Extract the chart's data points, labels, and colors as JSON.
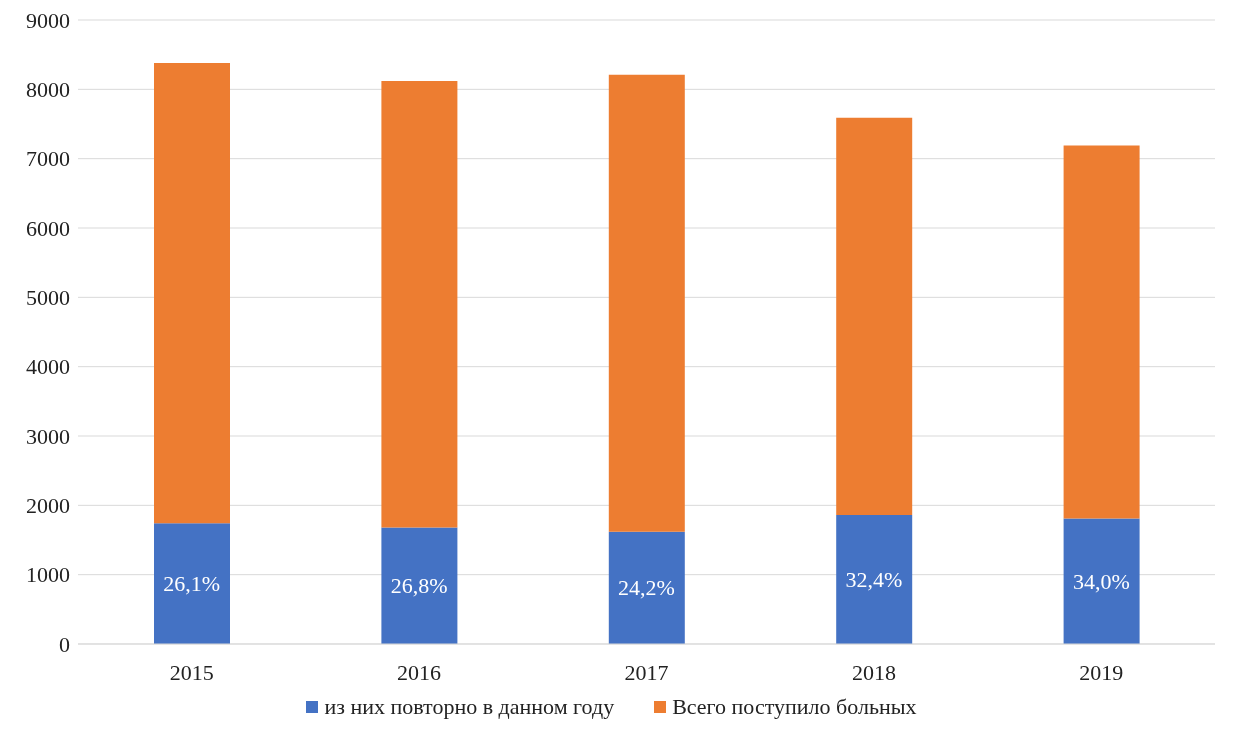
{
  "chart_data": {
    "type": "bar",
    "stacked": true,
    "categories": [
      "2015",
      "2016",
      "2017",
      "2018",
      "2019"
    ],
    "series": [
      {
        "name": "из них повторно в данном году",
        "color": "#4472c4",
        "values": [
          1740,
          1680,
          1620,
          1860,
          1810
        ]
      },
      {
        "name": "Всего поступило больных",
        "color": "#ed7d31",
        "values": [
          6640,
          6440,
          6590,
          5730,
          5380
        ]
      }
    ],
    "annotations": [
      {
        "text": "26,1%",
        "x": "2015",
        "y": 1740
      },
      {
        "text": "26,8%",
        "x": "2016",
        "y": 1680
      },
      {
        "text": "24,2%",
        "x": "2017",
        "y": 1620
      },
      {
        "text": "32,4%",
        "x": "2018",
        "y": 1860
      },
      {
        "text": "34,0%",
        "x": "2019",
        "y": 1810
      }
    ],
    "ylim": [
      0,
      9000
    ],
    "yticks": [
      0,
      1000,
      2000,
      3000,
      4000,
      5000,
      6000,
      7000,
      8000,
      9000
    ],
    "grid": "y",
    "legend": "bottom"
  }
}
